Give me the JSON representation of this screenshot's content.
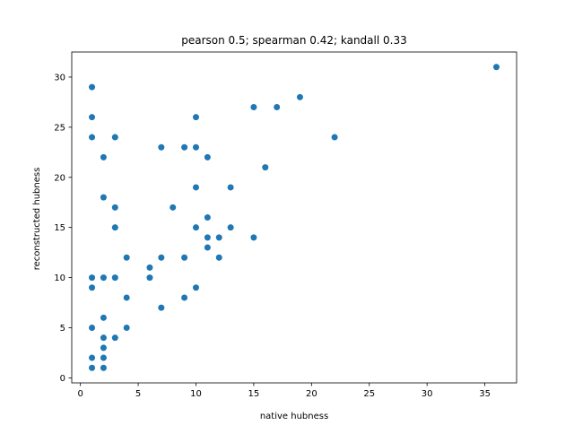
{
  "chart_data": {
    "type": "scatter",
    "title": "pearson 0.5; spearman 0.42; kandall 0.33",
    "xlabel": "native hubness",
    "ylabel": "reconstructed hubness",
    "xlim": [
      -0.75,
      37.75
    ],
    "ylim": [
      -0.5,
      32.5
    ],
    "xticks": [
      0,
      5,
      10,
      15,
      20,
      25,
      30,
      35
    ],
    "yticks": [
      0,
      5,
      10,
      15,
      20,
      25,
      30
    ],
    "grid": false,
    "marker_color": "#1f77b4",
    "points": [
      {
        "x": 1,
        "y": 29
      },
      {
        "x": 1,
        "y": 26
      },
      {
        "x": 1,
        "y": 24
      },
      {
        "x": 1,
        "y": 10
      },
      {
        "x": 1,
        "y": 9
      },
      {
        "x": 1,
        "y": 5
      },
      {
        "x": 1,
        "y": 2
      },
      {
        "x": 1,
        "y": 1
      },
      {
        "x": 2,
        "y": 22
      },
      {
        "x": 2,
        "y": 18
      },
      {
        "x": 2,
        "y": 10
      },
      {
        "x": 2,
        "y": 6
      },
      {
        "x": 2,
        "y": 4
      },
      {
        "x": 2,
        "y": 3
      },
      {
        "x": 2,
        "y": 2
      },
      {
        "x": 2,
        "y": 1
      },
      {
        "x": 3,
        "y": 24
      },
      {
        "x": 3,
        "y": 17
      },
      {
        "x": 3,
        "y": 15
      },
      {
        "x": 3,
        "y": 10
      },
      {
        "x": 3,
        "y": 4
      },
      {
        "x": 4,
        "y": 12
      },
      {
        "x": 4,
        "y": 8
      },
      {
        "x": 4,
        "y": 5
      },
      {
        "x": 6,
        "y": 11
      },
      {
        "x": 6,
        "y": 10
      },
      {
        "x": 7,
        "y": 23
      },
      {
        "x": 7,
        "y": 12
      },
      {
        "x": 7,
        "y": 7
      },
      {
        "x": 8,
        "y": 17
      },
      {
        "x": 9,
        "y": 23
      },
      {
        "x": 9,
        "y": 12
      },
      {
        "x": 9,
        "y": 8
      },
      {
        "x": 10,
        "y": 26
      },
      {
        "x": 10,
        "y": 23
      },
      {
        "x": 10,
        "y": 19
      },
      {
        "x": 10,
        "y": 15
      },
      {
        "x": 10,
        "y": 9
      },
      {
        "x": 11,
        "y": 22
      },
      {
        "x": 11,
        "y": 16
      },
      {
        "x": 11,
        "y": 14
      },
      {
        "x": 11,
        "y": 13
      },
      {
        "x": 12,
        "y": 14
      },
      {
        "x": 12,
        "y": 12
      },
      {
        "x": 13,
        "y": 19
      },
      {
        "x": 13,
        "y": 15
      },
      {
        "x": 15,
        "y": 27
      },
      {
        "x": 15,
        "y": 14
      },
      {
        "x": 16,
        "y": 21
      },
      {
        "x": 17,
        "y": 27
      },
      {
        "x": 19,
        "y": 28
      },
      {
        "x": 22,
        "y": 24
      },
      {
        "x": 36,
        "y": 31
      }
    ]
  }
}
